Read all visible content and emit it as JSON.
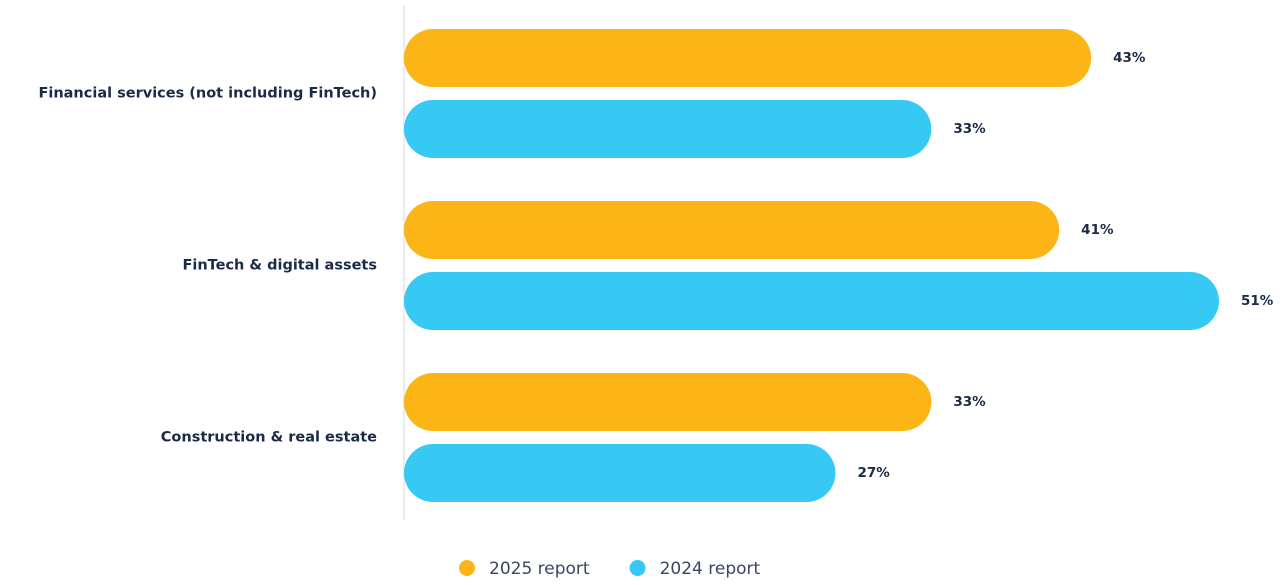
{
  "chart_data": {
    "type": "bar",
    "orientation": "horizontal",
    "categories": [
      "Financial services (not including FinTech)",
      "FinTech & digital assets",
      "Construction & real estate"
    ],
    "series": [
      {
        "name": "2025 report",
        "color": "#fbb517",
        "values": [
          43,
          41,
          33
        ],
        "value_labels": [
          "43%",
          "41%",
          "33%"
        ]
      },
      {
        "name": "2024 report",
        "color": "#35c9f4",
        "values": [
          33,
          51,
          27
        ],
        "value_labels": [
          "33%",
          "51%",
          "27%"
        ]
      }
    ],
    "legend": "bottom"
  }
}
